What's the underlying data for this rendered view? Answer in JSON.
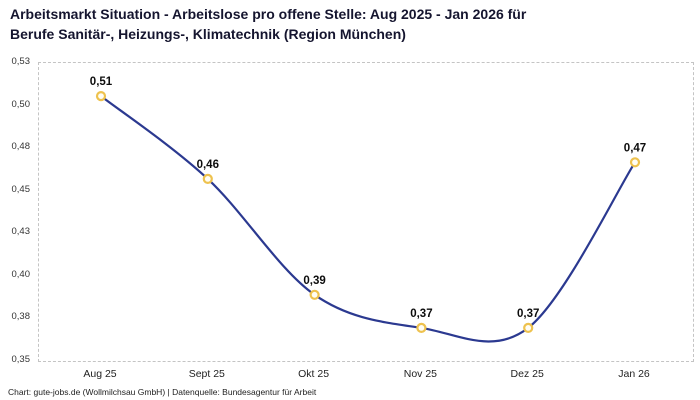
{
  "title": {
    "line1": "Arbeitsmarkt Situation - Arbeitslose pro offene Stelle: Aug 2025 - Jan 2026 für",
    "line2": "Berufe Sanitär-, Heizungs-, Klimatechnik (Region München)"
  },
  "footer": "Chart: gute-jobs.de (Wollmilchsau GmbH) | Datenquelle: Bundesagentur für Arbeit",
  "chart_data": {
    "type": "line",
    "categories": [
      "Aug 25",
      "Sept 25",
      "Okt 25",
      "Nov 25",
      "Dez 25",
      "Jan 26"
    ],
    "values": [
      0.51,
      0.46,
      0.39,
      0.37,
      0.37,
      0.47
    ],
    "value_labels": [
      "0,51",
      "0,46",
      "0,39",
      "0,37",
      "0,37",
      "0,47"
    ],
    "y_ticks": [
      "0,53",
      "0,50",
      "0,48",
      "0,45",
      "0,43",
      "0,40",
      "0,38",
      "0,35"
    ],
    "ylim": [
      0.35,
      0.53
    ],
    "grid": "off",
    "legend": "none",
    "line_color": "#2b3990",
    "marker_stroke_color": "#eec24e",
    "marker_fill_color": "#fffdf4"
  }
}
